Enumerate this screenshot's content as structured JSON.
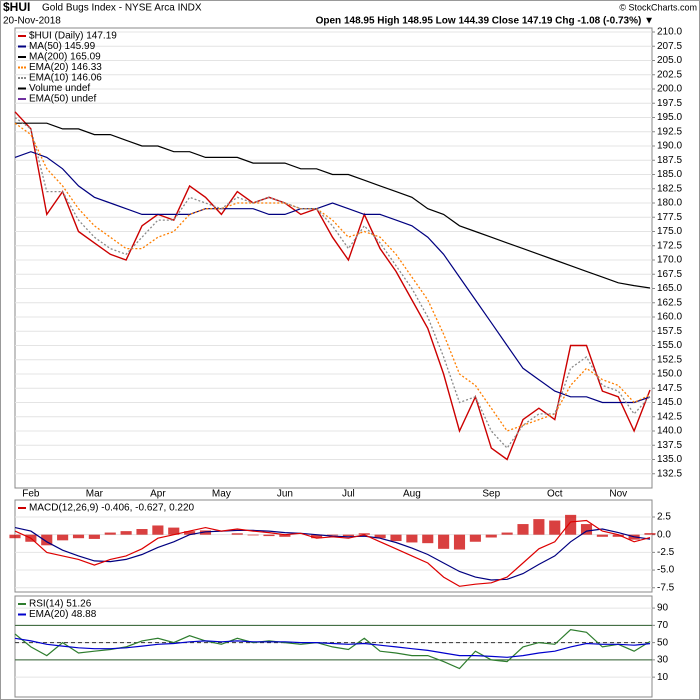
{
  "chart_data": [
    {
      "type": "line",
      "title": "$HUI",
      "subtitle": "Gold Bugs Index - NYSE Arca INDX",
      "date": "20-Nov-2018",
      "quote": "Open 148.95 High 148.95 Low 144.39 Close 147.19 Chg -1.08 (-0.73%) ▼",
      "copyright": "© StockCharts.com",
      "categories": [
        null,
        "Feb",
        null,
        null,
        null,
        "Mar",
        null,
        null,
        null,
        "Apr",
        null,
        null,
        null,
        "May",
        null,
        null,
        null,
        "Jun",
        null,
        null,
        null,
        "Jul",
        null,
        null,
        null,
        "Aug",
        null,
        null,
        null,
        null,
        "Sep",
        null,
        null,
        null,
        "Oct",
        null,
        null,
        null,
        "Nov",
        null,
        null
      ],
      "series": [
        {
          "name": "$HUI (Daily) 147.19",
          "color": "#cc0000",
          "style": "line",
          "values": [
            196,
            193,
            178,
            182,
            175,
            173,
            171,
            170,
            176,
            178,
            177,
            183,
            181,
            178,
            182,
            180,
            181,
            180,
            178,
            179,
            174,
            170,
            178,
            172,
            168,
            163,
            158,
            150,
            140,
            146,
            137,
            135,
            142,
            144,
            142,
            155,
            155,
            147,
            146,
            140,
            147.19
          ]
        },
        {
          "name": "MA(50) 145.99",
          "color": "#000080",
          "style": "line",
          "values": [
            188,
            189,
            188,
            186,
            183,
            181,
            180,
            179,
            178,
            178,
            178,
            178,
            179,
            179,
            179,
            179,
            178,
            178,
            179,
            179,
            180,
            179,
            178,
            178,
            177,
            176,
            174,
            171,
            167,
            163,
            159,
            155,
            151,
            149,
            147,
            146,
            146,
            145,
            145,
            145,
            145.99
          ]
        },
        {
          "name": "MA(200) 165.09",
          "color": "#000000",
          "style": "line",
          "values": [
            194,
            194,
            194,
            193,
            193,
            192,
            192,
            191,
            190,
            190,
            189,
            189,
            188,
            188,
            188,
            187,
            187,
            187,
            186,
            186,
            185,
            185,
            184,
            183,
            182,
            181,
            179,
            178,
            176,
            175,
            174,
            173,
            172,
            171,
            170,
            169,
            168,
            167,
            166,
            165.5,
            165.09
          ]
        },
        {
          "name": "EMA(20) 146.33",
          "color": "#ff7f00",
          "style": "dotted",
          "values": [
            194,
            192,
            186,
            183,
            179,
            176,
            174,
            172,
            172,
            174,
            175,
            178,
            179,
            179,
            180,
            180,
            180,
            180,
            179,
            179,
            177,
            174,
            175,
            174,
            171,
            167,
            163,
            157,
            150,
            148,
            144,
            140,
            141,
            142,
            143,
            148,
            151,
            149,
            148,
            145,
            146.33
          ]
        },
        {
          "name": "EMA(10) 146.06",
          "color": "#8a8a8a",
          "style": "dotted",
          "values": [
            195,
            193,
            182,
            182,
            177,
            174,
            172,
            171,
            174,
            177,
            177,
            181,
            180,
            179,
            181,
            180,
            181,
            180,
            179,
            179,
            176,
            172,
            176,
            173,
            169,
            165,
            160,
            153,
            145,
            146,
            140,
            137,
            141,
            143,
            143,
            151,
            153,
            148,
            147,
            143,
            146.06
          ]
        }
      ],
      "legend_extra": [
        {
          "name": "Volume undef",
          "color": "#000000"
        },
        {
          "name": "EMA(50) undef",
          "color": "#7030a0"
        }
      ],
      "ylim": [
        130,
        210.7
      ],
      "grid": true,
      "yticks": [
        {
          "value": 132.5,
          "label": "132.5"
        },
        {
          "value": 135,
          "label": "135.0"
        },
        {
          "value": 137.5,
          "label": "137.5"
        },
        {
          "value": 140,
          "label": "140.0"
        },
        {
          "value": 142.5,
          "label": "142.5"
        },
        {
          "value": 145,
          "label": "145.0"
        },
        {
          "value": 147.5,
          "label": "147.5"
        },
        {
          "value": 150,
          "label": "150.0"
        },
        {
          "value": 152.5,
          "label": "152.5"
        },
        {
          "value": 155,
          "label": "155.0"
        },
        {
          "value": 157.5,
          "label": "157.5"
        },
        {
          "value": 160,
          "label": "160.0"
        },
        {
          "value": 162.5,
          "label": "162.5"
        },
        {
          "value": 165,
          "label": "165.0"
        },
        {
          "value": 167.5,
          "label": "167.5"
        },
        {
          "value": 170,
          "label": "170.0"
        },
        {
          "value": 172.5,
          "label": "172.5"
        },
        {
          "value": 175,
          "label": "175.0"
        },
        {
          "value": 177.5,
          "label": "177.5"
        },
        {
          "value": 180,
          "label": "180.0"
        },
        {
          "value": 182.5,
          "label": "182.5"
        },
        {
          "value": 185,
          "label": "185.0"
        },
        {
          "value": 187.5,
          "label": "187.5"
        },
        {
          "value": 190,
          "label": "190.0"
        },
        {
          "value": 192.5,
          "label": "192.5"
        },
        {
          "value": 195,
          "label": "195.0"
        },
        {
          "value": 197.5,
          "label": "197.5"
        },
        {
          "value": 200,
          "label": "200.0"
        },
        {
          "value": 202.5,
          "label": "202.5"
        },
        {
          "value": 205,
          "label": "205.0"
        },
        {
          "value": 207.5,
          "label": "207.5"
        },
        {
          "value": 210,
          "label": "210.0"
        }
      ]
    },
    {
      "type": "line",
      "legend_title": "MACD(12,26,9) -0.406, -0.627, 0.220",
      "series": [
        {
          "color": "#cc0000",
          "style": "bar",
          "values": [
            -0.5,
            -1,
            -1.5,
            -0.8,
            -0.5,
            -0.6,
            0.3,
            0.5,
            0.8,
            1.3,
            1,
            0.5,
            0.6,
            0,
            0.2,
            -0.1,
            -0.2,
            -0.3,
            0,
            -0.5,
            -0.1,
            -0.2,
            0.2,
            -0.5,
            -0.9,
            -1.1,
            -1.2,
            -2,
            -2.1,
            -1,
            -0.4,
            0.3,
            1.5,
            2.2,
            2,
            2.8,
            1.5,
            -0.3,
            -0.3,
            -0.7,
            0.22
          ]
        },
        {
          "color": "#000080",
          "style": "line",
          "values": [
            1,
            0.5,
            -1,
            -2.2,
            -3,
            -3.7,
            -3.8,
            -3.5,
            -2.8,
            -1.8,
            -1,
            0,
            0.4,
            0.5,
            0.6,
            0.6,
            0.5,
            0.3,
            0.2,
            0,
            -0.2,
            -0.3,
            -0.2,
            -0.5,
            -1.1,
            -1.9,
            -2.8,
            -4,
            -5.2,
            -6,
            -6.4,
            -6.3,
            -5.5,
            -4.2,
            -3,
            -1,
            0.5,
            0.8,
            0.3,
            -0.3,
            -0.627
          ]
        },
        {
          "color": "#dd0000",
          "style": "line",
          "values": [
            0.5,
            -0.5,
            -2.5,
            -3,
            -3.5,
            -4.3,
            -3.5,
            -3,
            -2,
            -0.5,
            0,
            0.5,
            1,
            0.5,
            0.8,
            0.5,
            0.3,
            0,
            0.2,
            -0.5,
            -0.3,
            -0.5,
            0,
            -1,
            -2,
            -3,
            -4,
            -6,
            -7.3,
            -7,
            -6.8,
            -6,
            -4,
            -2,
            -1,
            1.8,
            2,
            0.5,
            0,
            -1,
            -0.406
          ]
        }
      ],
      "ylim": [
        -8.1,
        4.9
      ],
      "grid": true,
      "yticks": [
        2.5,
        {
          "value": 0,
          "label": "0.0"
        },
        -2.5,
        {
          "value": -5,
          "label": "-5.0"
        },
        -7.5
      ]
    },
    {
      "type": "line",
      "series": [
        {
          "name": "RSI(14) 51.26",
          "color": "#2e7d2e",
          "style": "line",
          "values": [
            60,
            45,
            35,
            50,
            38,
            40,
            42,
            45,
            52,
            55,
            50,
            58,
            52,
            48,
            55,
            50,
            52,
            50,
            48,
            50,
            45,
            42,
            55,
            40,
            38,
            35,
            35,
            28,
            20,
            40,
            30,
            28,
            45,
            50,
            48,
            65,
            62,
            45,
            48,
            40,
            51.26
          ]
        },
        {
          "name": "EMA(20) 48.88",
          "color": "#0000cc",
          "style": "line",
          "values": [
            55,
            52,
            48,
            46,
            44,
            43,
            43,
            44,
            46,
            48,
            49,
            51,
            52,
            51,
            52,
            51,
            51,
            51,
            50,
            50,
            49,
            48,
            49,
            47,
            45,
            43,
            41,
            38,
            35,
            35,
            34,
            33,
            35,
            38,
            40,
            45,
            49,
            48,
            48,
            47,
            48.88
          ]
        }
      ],
      "hlines": [
        70,
        30
      ],
      "midline": 50,
      "ylim": [
        -13,
        104
      ],
      "grid": true,
      "yticks": [
        90,
        70,
        50,
        30,
        10
      ]
    }
  ]
}
